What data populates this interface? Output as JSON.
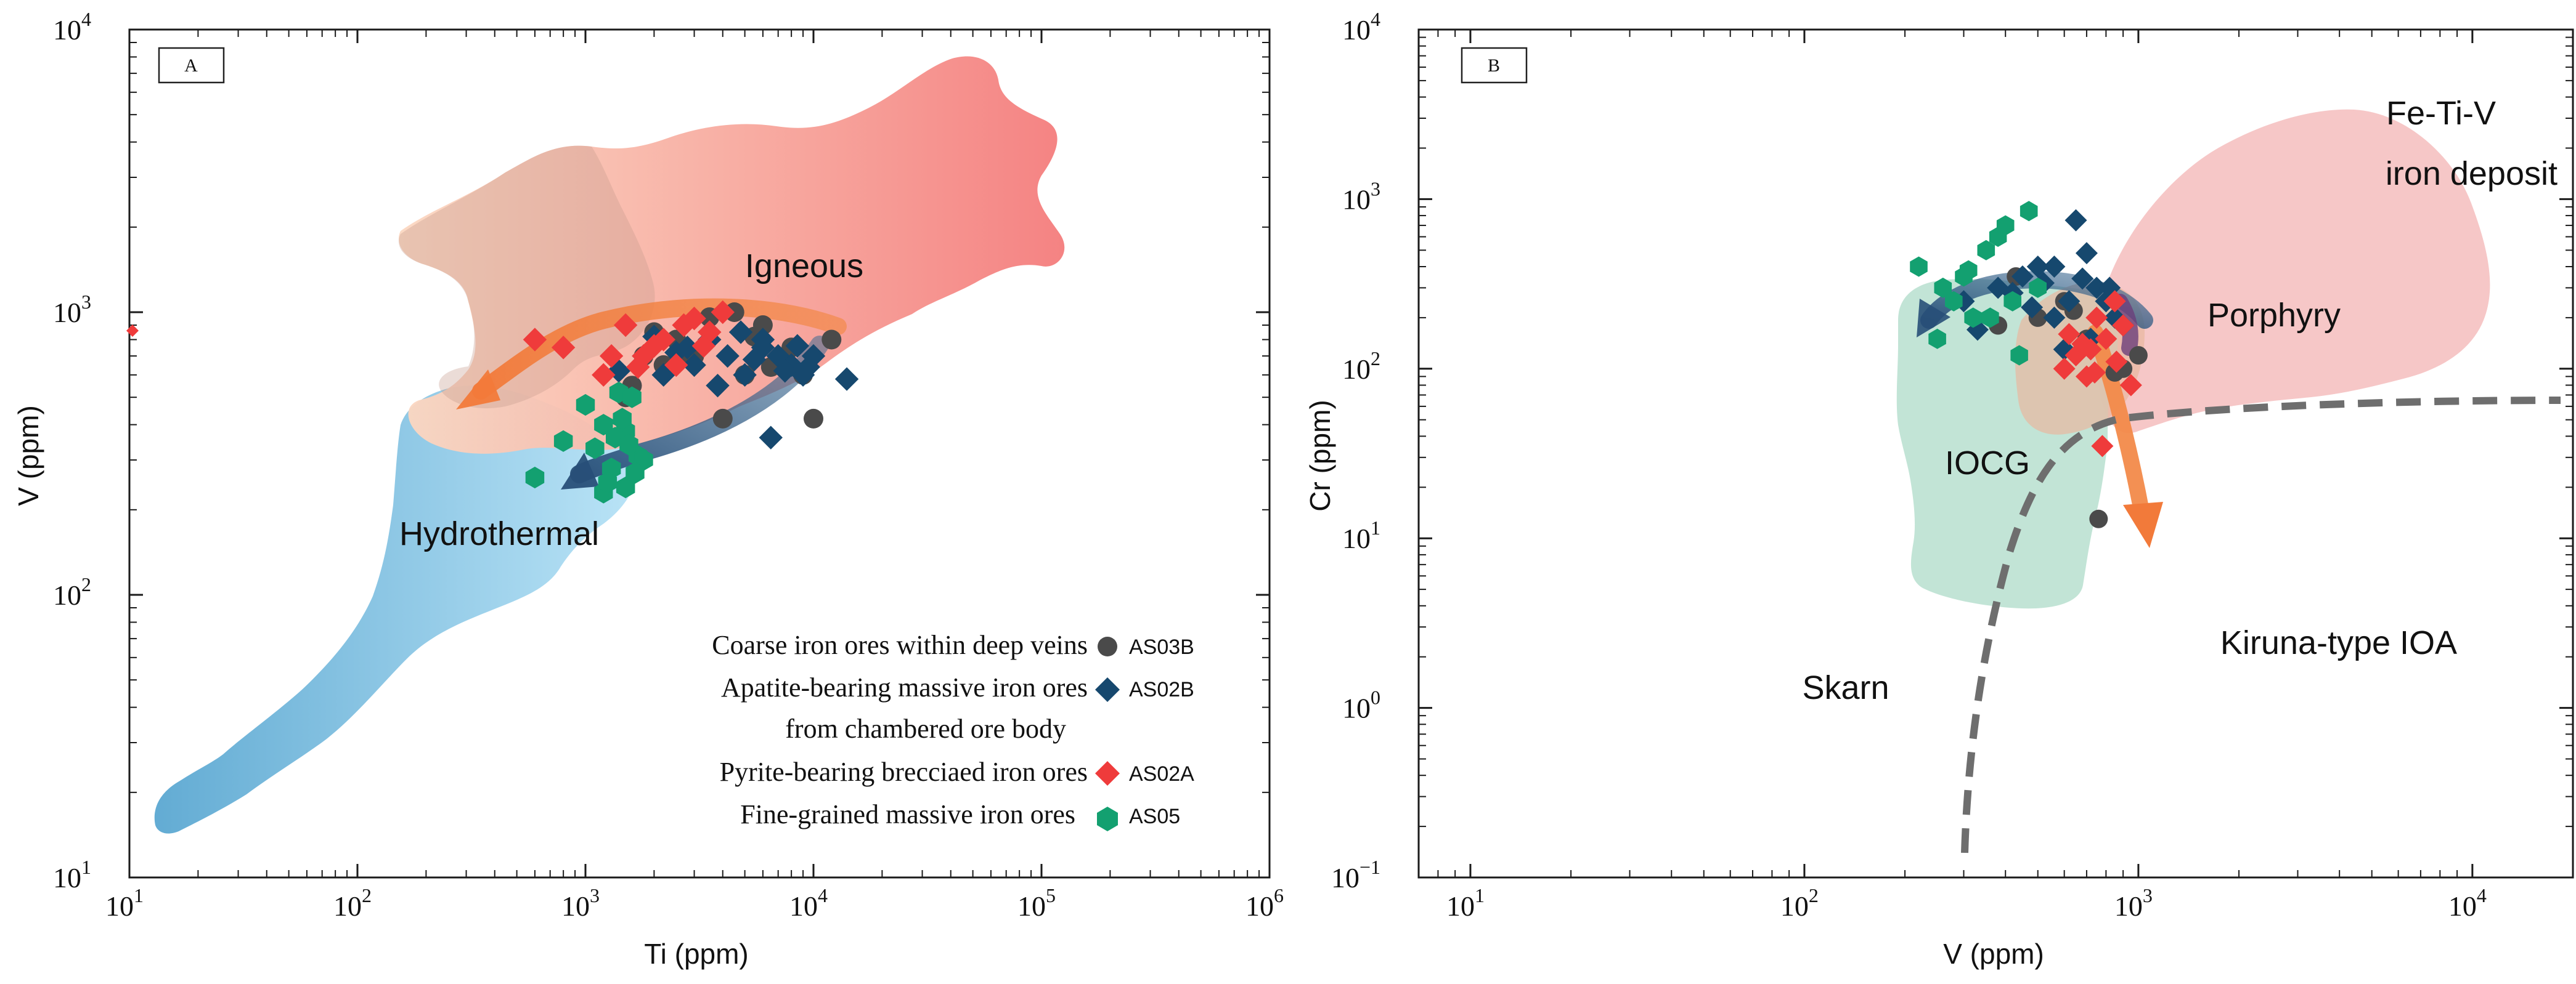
{
  "chart_data": [
    {
      "type": "scatter",
      "panel_label": "A",
      "xlabel": "Ti (ppm)",
      "ylabel": "V (ppm)",
      "xscale": "log",
      "yscale": "log",
      "xlim": [
        10,
        1000000
      ],
      "ylim": [
        10,
        10000
      ],
      "x_ticks": [
        {
          "base": "10",
          "exp": "1"
        },
        {
          "base": "10",
          "exp": "2"
        },
        {
          "base": "10",
          "exp": "3"
        },
        {
          "base": "10",
          "exp": "4"
        },
        {
          "base": "10",
          "exp": "5"
        },
        {
          "base": "10",
          "exp": "6"
        }
      ],
      "y_ticks": [
        {
          "base": "10",
          "exp": "1"
        },
        {
          "base": "10",
          "exp": "2"
        },
        {
          "base": "10",
          "exp": "3"
        },
        {
          "base": "10",
          "exp": "4"
        }
      ],
      "fields": [
        {
          "name": "Igneous",
          "color": "#f59b86"
        },
        {
          "name": "Hydrothermal",
          "color": "#6fb3dc"
        }
      ],
      "legend": [
        {
          "text": "Coarse iron ores within deep veins",
          "code": "AS03B",
          "marker": "circle",
          "color": "#4a4a4a"
        },
        {
          "text": "Apatite-bearing massive iron ores",
          "text2": "from chambered ore body",
          "code": "AS02B",
          "marker": "diamond",
          "color": "#16486e"
        },
        {
          "text": "Pyrite-bearing brecciaed iron ores",
          "code": "AS02A",
          "marker": "diamond",
          "color": "#ef3b3b"
        },
        {
          "text": "Fine-grained massive iron ores",
          "code": "AS05",
          "marker": "hexagon",
          "color": "#13a070"
        }
      ],
      "series": [
        {
          "name": "AS03B",
          "x": [
            2000,
            2500,
            3000,
            4500,
            5000,
            6000,
            8000,
            9000,
            12000,
            1800,
            2200,
            1500,
            4000,
            10000,
            3500,
            5500,
            7000,
            2700,
            6500,
            1600
          ],
          "y": [
            850,
            800,
            700,
            1000,
            600,
            900,
            750,
            600,
            800,
            700,
            650,
            500,
            420,
            420,
            960,
            820,
            680,
            720,
            640,
            550
          ]
        },
        {
          "name": "AS02B",
          "x": [
            1800,
            2200,
            3000,
            3500,
            4200,
            5000,
            6000,
            7000,
            8000,
            9000,
            10000,
            14000,
            6500,
            2800,
            3800,
            4800,
            5500,
            7500,
            2500,
            6000,
            8500,
            1400,
            2000,
            9500
          ],
          "y": [
            700,
            600,
            650,
            800,
            700,
            600,
            750,
            700,
            650,
            600,
            700,
            580,
            360,
            750,
            550,
            850,
            680,
            620,
            720,
            800,
            760,
            620,
            820,
            640
          ]
        },
        {
          "name": "AS02A",
          "x": [
            600,
            800,
            1200,
            1500,
            1800,
            2200,
            2500,
            3000,
            3500,
            4000,
            1300,
            2700,
            2000,
            1700,
            3300
          ],
          "y": [
            800,
            750,
            600,
            900,
            700,
            800,
            650,
            950,
            850,
            1000,
            700,
            900,
            760,
            640,
            760
          ]
        },
        {
          "name": "AS05",
          "x": [
            800,
            1000,
            1200,
            1300,
            1400,
            1500,
            1600,
            1700,
            1800,
            1200,
            1500,
            1350,
            600,
            1100,
            1650,
            1450,
            1250,
            1550
          ],
          "y": [
            350,
            470,
            400,
            280,
            520,
            380,
            500,
            310,
            300,
            230,
            240,
            360,
            260,
            330,
            270,
            420,
            250,
            340
          ]
        }
      ]
    },
    {
      "type": "scatter",
      "panel_label": "B",
      "xlabel": "V (ppm)",
      "ylabel": "Cr (ppm)",
      "xscale": "log",
      "yscale": "log",
      "xlim": [
        7,
        20000
      ],
      "ylim": [
        0.1,
        10000
      ],
      "x_ticks": [
        {
          "base": "10",
          "exp": "1"
        },
        {
          "base": "10",
          "exp": "2"
        },
        {
          "base": "10",
          "exp": "3"
        },
        {
          "base": "10",
          "exp": "4"
        }
      ],
      "y_ticks": [
        {
          "base": "10",
          "exp": "−1"
        },
        {
          "base": "10",
          "exp": "0"
        },
        {
          "base": "10",
          "exp": "1"
        },
        {
          "base": "10",
          "exp": "2"
        },
        {
          "base": "10",
          "exp": "3"
        },
        {
          "base": "10",
          "exp": "4"
        }
      ],
      "fields": [
        {
          "name": "Fe-Ti-V",
          "name2": "iron deposit",
          "color": "#f6c4c4"
        },
        {
          "name": "Porphyry",
          "color": "#f6c4c4"
        },
        {
          "name": "IOCG",
          "color": "#bfe3d4"
        },
        {
          "name": "Kiruna-type IOA"
        },
        {
          "name": "Skarn"
        }
      ],
      "series": [
        {
          "name": "AS03B",
          "x": [
            380,
            500,
            600,
            700,
            900,
            1000,
            430,
            760,
            640,
            850
          ],
          "y": [
            180,
            200,
            250,
            150,
            100,
            120,
            350,
            13,
            220,
            95
          ]
        },
        {
          "name": "AS02B",
          "x": [
            300,
            380,
            450,
            500,
            560,
            620,
            650,
            700,
            750,
            800,
            850,
            900,
            480,
            560,
            720,
            600,
            420,
            820,
            680,
            330,
            520
          ],
          "y": [
            250,
            300,
            350,
            400,
            200,
            250,
            750,
            480,
            300,
            250,
            200,
            180,
            230,
            400,
            150,
            130,
            280,
            300,
            340,
            170,
            320
          ]
        },
        {
          "name": "AS02A",
          "x": [
            600,
            650,
            700,
            750,
            800,
            850,
            900,
            950,
            680,
            780,
            620,
            860,
            740,
            720
          ],
          "y": [
            100,
            120,
            90,
            200,
            150,
            250,
            180,
            80,
            140,
            35,
            160,
            110,
            95,
            130
          ]
        },
        {
          "name": "AS05",
          "x": [
            220,
            260,
            280,
            300,
            320,
            350,
            380,
            400,
            420,
            470,
            500,
            360,
            250,
            310,
            440
          ],
          "y": [
            400,
            300,
            250,
            350,
            200,
            500,
            600,
            700,
            250,
            850,
            300,
            200,
            150,
            380,
            120
          ]
        }
      ]
    }
  ]
}
